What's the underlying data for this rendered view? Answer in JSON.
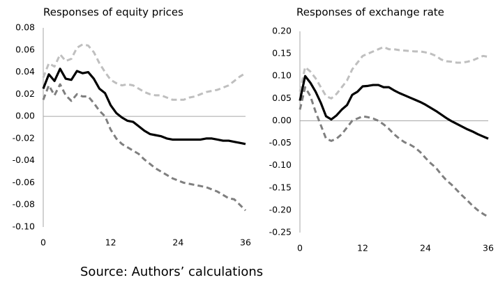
{
  "chart_data": [
    {
      "type": "line",
      "title": "Responses of equity prices",
      "x": [
        0,
        1,
        2,
        3,
        4,
        5,
        6,
        7,
        8,
        9,
        10,
        11,
        12,
        13,
        14,
        15,
        16,
        17,
        18,
        19,
        20,
        21,
        22,
        23,
        24,
        25,
        26,
        27,
        28,
        29,
        30,
        31,
        32,
        33,
        34,
        35,
        36
      ],
      "xlim": [
        0,
        36
      ],
      "xticks": [
        0,
        12,
        24,
        36
      ],
      "ylim": [
        -0.1,
        0.08
      ],
      "yticks": [
        0.08,
        0.06,
        0.04,
        0.02,
        {
          "value": 0,
          "label": "0.00"
        },
        -0.02,
        -0.04,
        -0.06,
        -0.08,
        {
          "value": -0.1,
          "label": "-0.10"
        }
      ],
      "series": [
        {
          "color": "#bfbfbf",
          "style": "dashed",
          "values": [
            0.035,
            0.048,
            0.045,
            0.056,
            0.05,
            0.052,
            0.062,
            0.065,
            0.064,
            0.058,
            0.048,
            0.04,
            0.033,
            0.03,
            0.028,
            0.029,
            0.028,
            0.025,
            0.022,
            0.02,
            0.019,
            0.019,
            0.017,
            0.015,
            0.015,
            0.015,
            0.017,
            0.018,
            0.02,
            0.022,
            0.023,
            0.024,
            0.026,
            0.028,
            0.032,
            0.036,
            0.039
          ]
        },
        {
          "color": "#7f7f7f",
          "style": "dashed",
          "values": [
            0.015,
            0.028,
            0.019,
            0.029,
            0.019,
            0.014,
            0.02,
            0.018,
            0.018,
            0.012,
            0.005,
            0.0,
            -0.012,
            -0.02,
            -0.025,
            -0.028,
            -0.031,
            -0.034,
            -0.039,
            -0.043,
            -0.047,
            -0.05,
            -0.053,
            -0.056,
            -0.058,
            -0.06,
            -0.061,
            -0.062,
            -0.063,
            -0.064,
            -0.066,
            -0.068,
            -0.071,
            -0.074,
            -0.075,
            -0.08,
            -0.085
          ]
        },
        {
          "color": "#000000",
          "style": "solid",
          "values": [
            0.025,
            0.038,
            0.032,
            0.043,
            0.034,
            0.033,
            0.041,
            0.039,
            0.04,
            0.034,
            0.025,
            0.021,
            0.01,
            0.003,
            -0.001,
            -0.004,
            -0.005,
            -0.009,
            -0.013,
            -0.016,
            -0.017,
            -0.018,
            -0.02,
            -0.021,
            -0.021,
            -0.021,
            -0.021,
            -0.021,
            -0.021,
            -0.02,
            -0.02,
            -0.021,
            -0.022,
            -0.022,
            -0.023,
            -0.024,
            -0.025
          ]
        }
      ]
    },
    {
      "type": "line",
      "title": "Responses of exchange rate",
      "x": [
        0,
        1,
        2,
        3,
        4,
        5,
        6,
        7,
        8,
        9,
        10,
        11,
        12,
        13,
        14,
        15,
        16,
        17,
        18,
        19,
        20,
        21,
        22,
        23,
        24,
        25,
        26,
        27,
        28,
        29,
        30,
        31,
        32,
        33,
        34,
        35,
        36
      ],
      "xlim": [
        0,
        36
      ],
      "xticks": [
        0,
        12,
        24,
        36
      ],
      "ylim": [
        -0.25,
        0.2
      ],
      "yticks": [
        {
          "value": 0.2,
          "label": "0.20"
        },
        0.15,
        {
          "value": 0.1,
          "label": "0.10"
        },
        0.05,
        {
          "value": 0,
          "label": "0.00"
        },
        -0.05,
        {
          "value": -0.1,
          "label": "-0.10"
        },
        -0.15,
        {
          "value": -0.2,
          "label": "-0.20"
        },
        -0.25
      ],
      "series": [
        {
          "color": "#bfbfbf",
          "style": "dashed",
          "values": [
            0.065,
            0.12,
            0.11,
            0.095,
            0.075,
            0.055,
            0.05,
            0.06,
            0.075,
            0.09,
            0.115,
            0.13,
            0.145,
            0.15,
            0.155,
            0.16,
            0.165,
            0.16,
            0.16,
            0.158,
            0.157,
            0.156,
            0.155,
            0.155,
            0.153,
            0.15,
            0.145,
            0.137,
            0.133,
            0.132,
            0.13,
            0.13,
            0.132,
            0.135,
            0.14,
            0.145,
            0.143
          ]
        },
        {
          "color": "#7f7f7f",
          "style": "dashed",
          "values": [
            0.025,
            0.075,
            0.055,
            0.02,
            -0.01,
            -0.04,
            -0.045,
            -0.04,
            -0.03,
            -0.015,
            0.0,
            0.005,
            0.01,
            0.008,
            0.005,
            0.0,
            -0.008,
            -0.018,
            -0.03,
            -0.04,
            -0.048,
            -0.053,
            -0.06,
            -0.07,
            -0.083,
            -0.095,
            -0.105,
            -0.12,
            -0.133,
            -0.143,
            -0.155,
            -0.167,
            -0.178,
            -0.19,
            -0.2,
            -0.208,
            -0.215
          ]
        },
        {
          "color": "#000000",
          "style": "solid",
          "values": [
            0.045,
            0.1,
            0.085,
            0.065,
            0.04,
            0.01,
            0.003,
            0.012,
            0.025,
            0.035,
            0.058,
            0.065,
            0.077,
            0.078,
            0.08,
            0.08,
            0.075,
            0.075,
            0.068,
            0.062,
            0.057,
            0.052,
            0.047,
            0.042,
            0.036,
            0.029,
            0.022,
            0.014,
            0.006,
            -0.001,
            -0.007,
            -0.013,
            -0.019,
            -0.024,
            -0.03,
            -0.035,
            -0.04
          ]
        }
      ]
    }
  ],
  "source": "Source: Authors’ calculations"
}
